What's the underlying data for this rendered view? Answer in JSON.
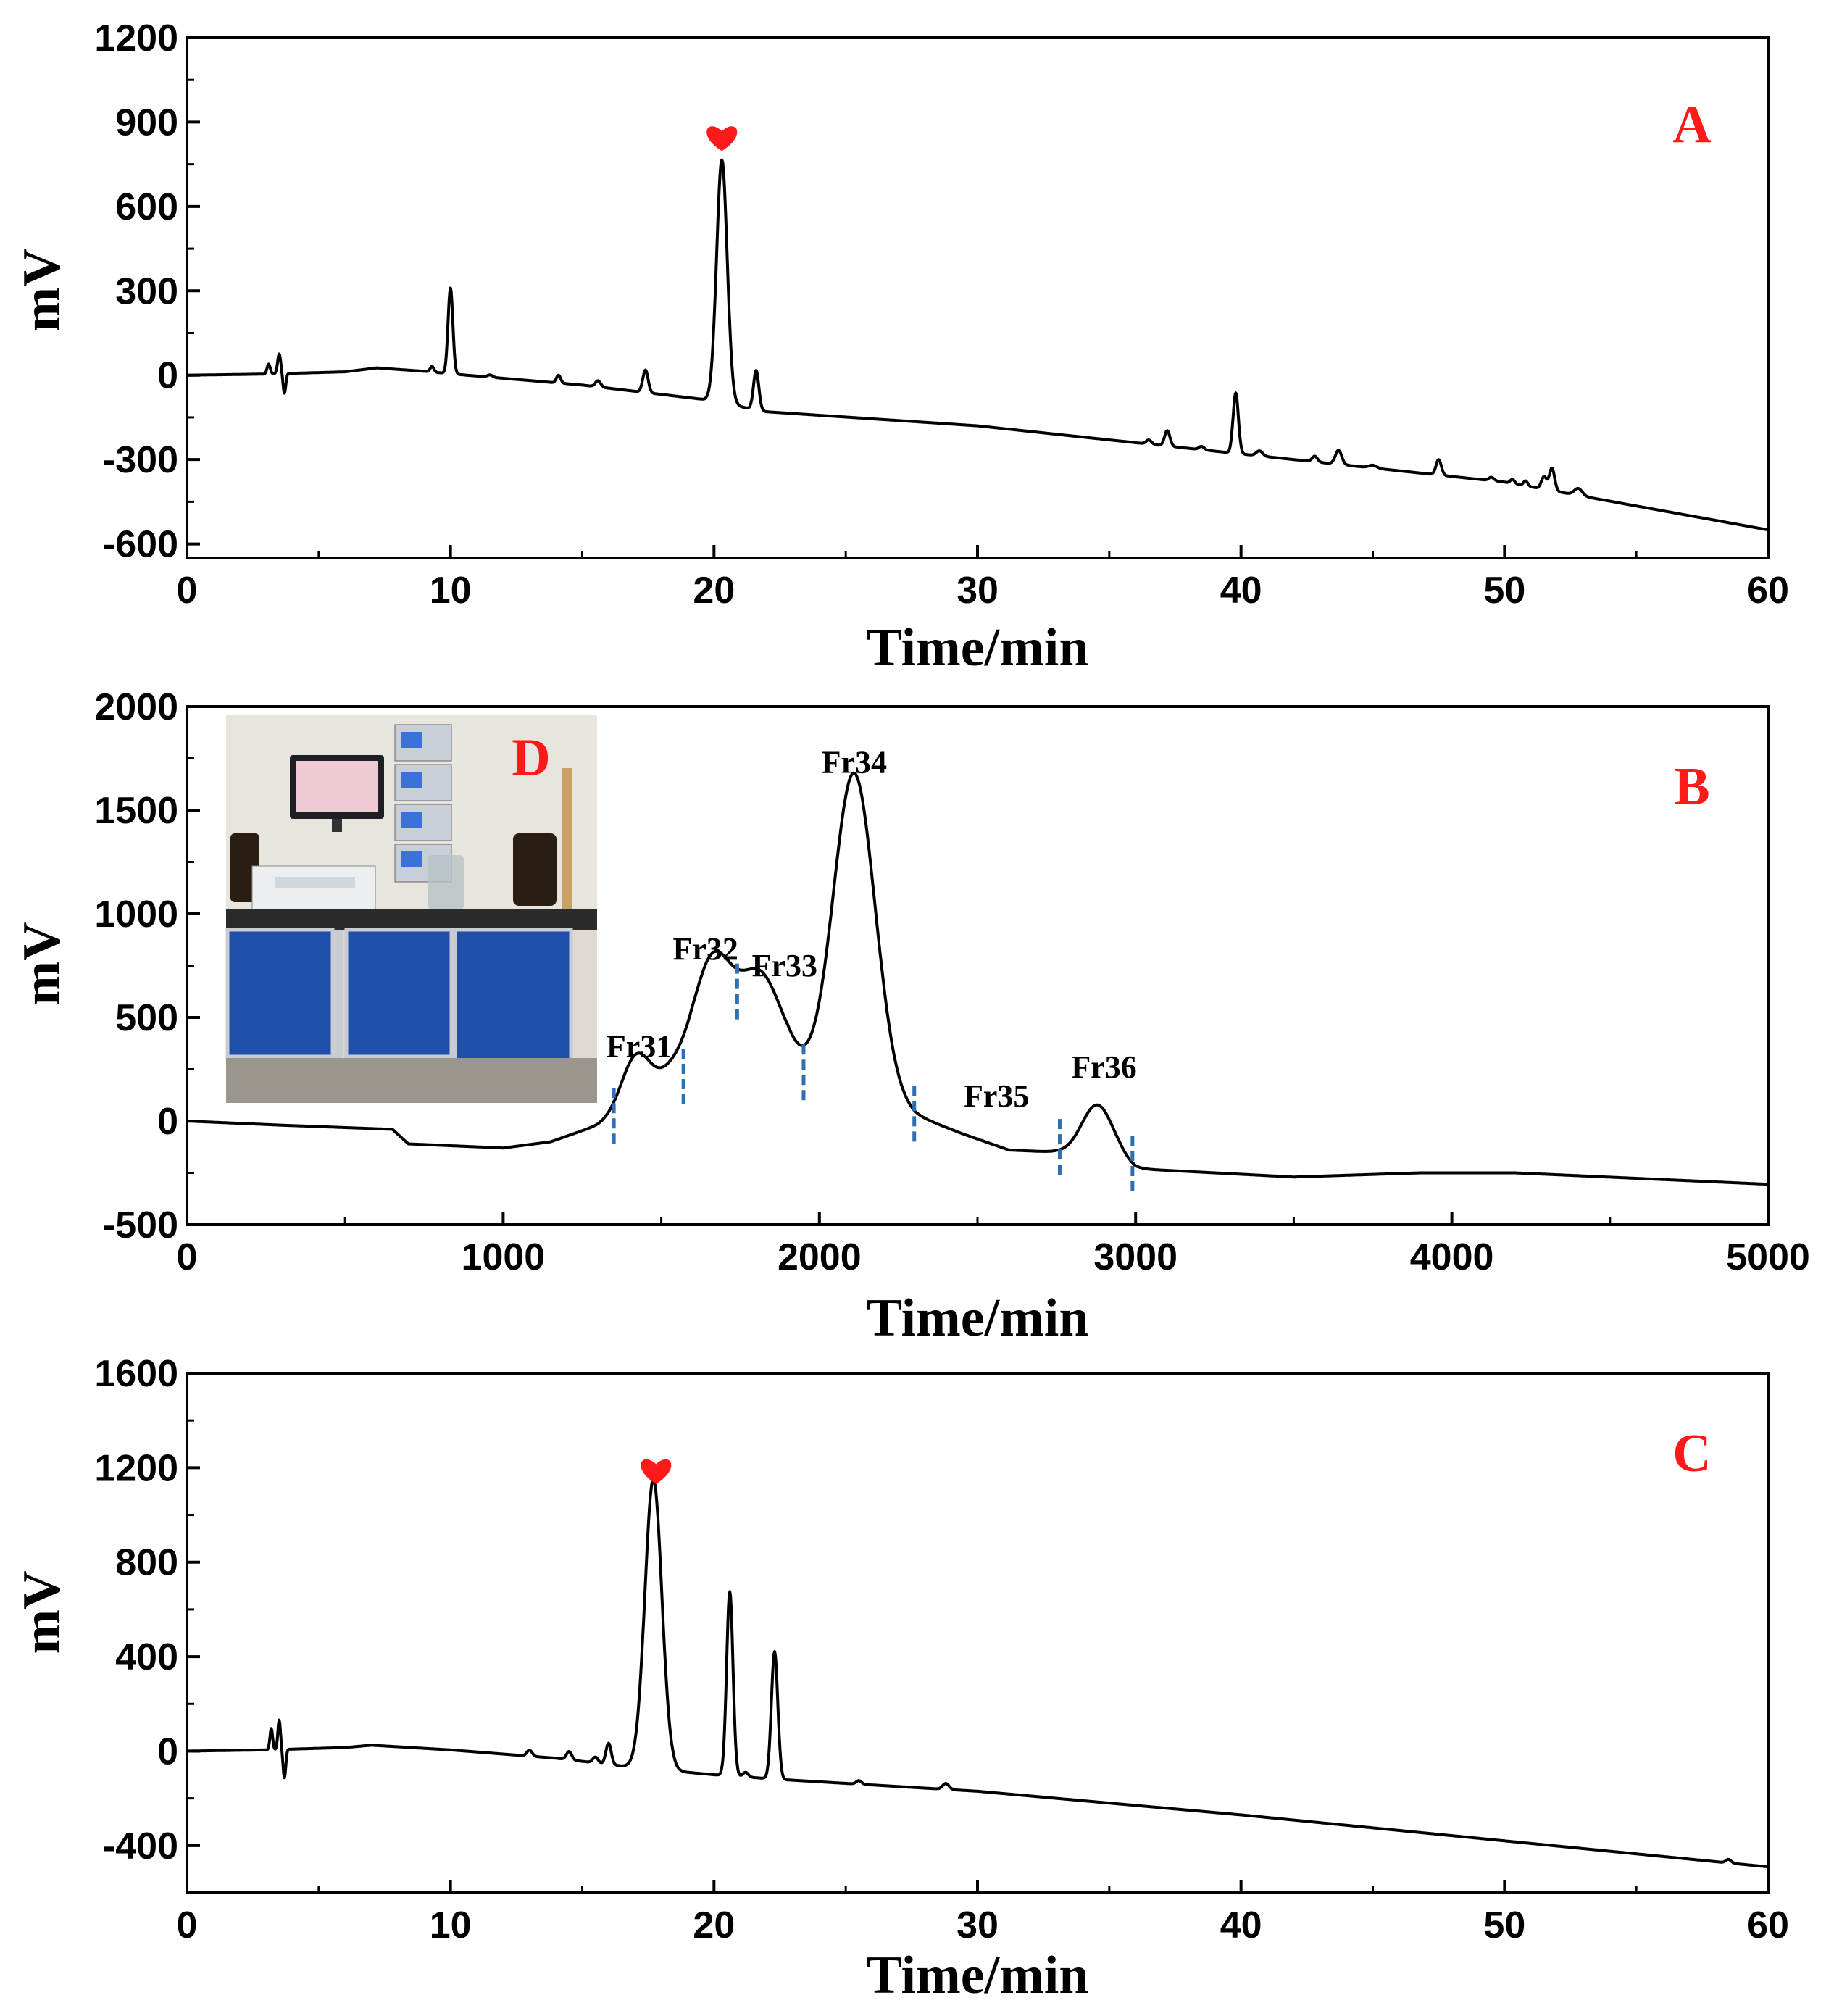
{
  "figure": {
    "panels": [
      "A",
      "B",
      "C"
    ],
    "inset_label": "D",
    "marker_icon": "heart-icon",
    "colors": {
      "line": "#000000",
      "accent": "#ff1a1a",
      "cut": "#2e6fb0"
    }
  },
  "chart_data": [
    {
      "panel": "A",
      "type": "line",
      "xlabel": "Time/min",
      "ylabel": "mV",
      "xlim": [
        0,
        60
      ],
      "ylim": [
        -650,
        1200
      ],
      "xticks": [
        0,
        10,
        20,
        30,
        40,
        50,
        60
      ],
      "yticks": [
        -600,
        -300,
        0,
        300,
        600,
        900,
        1200
      ],
      "panel_label": "A",
      "marked_peak_x": 20.3,
      "baseline": [
        [
          0,
          0
        ],
        [
          3,
          4
        ],
        [
          6,
          12
        ],
        [
          7.2,
          26
        ],
        [
          9,
          14
        ],
        [
          10,
          5
        ],
        [
          15,
          -35
        ],
        [
          19.5,
          -85
        ],
        [
          22,
          -130
        ],
        [
          30,
          -180
        ],
        [
          40,
          -280
        ],
        [
          50,
          -380
        ],
        [
          60,
          -550
        ]
      ],
      "peaks": [
        [
          3.1,
          35,
          0.06
        ],
        [
          3.5,
          70,
          0.06
        ],
        [
          3.7,
          -70,
          0.05
        ],
        [
          9.3,
          20,
          0.07
        ],
        [
          10.0,
          305,
          0.09
        ],
        [
          11.5,
          8,
          0.1
        ],
        [
          14.1,
          28,
          0.08
        ],
        [
          15.6,
          22,
          0.1
        ],
        [
          17.4,
          80,
          0.1
        ],
        [
          20.3,
          865,
          0.2
        ],
        [
          21.6,
          140,
          0.1
        ],
        [
          36.5,
          15,
          0.1
        ],
        [
          37.2,
          55,
          0.1
        ],
        [
          38.5,
          12,
          0.1
        ],
        [
          39.8,
          215,
          0.1
        ],
        [
          40.7,
          18,
          0.12
        ],
        [
          42.8,
          20,
          0.1
        ],
        [
          43.7,
          50,
          0.12
        ],
        [
          45.0,
          10,
          0.15
        ],
        [
          47.5,
          55,
          0.1
        ],
        [
          49.5,
          12,
          0.1
        ],
        [
          50.3,
          15,
          0.08
        ],
        [
          50.8,
          18,
          0.08
        ],
        [
          51.5,
          45,
          0.1
        ],
        [
          51.8,
          80,
          0.1
        ],
        [
          52.8,
          25,
          0.15
        ]
      ],
      "marks": [
        {
          "x": 3.3,
          "kind": "positive"
        },
        {
          "x": 10.0,
          "kind": "positive"
        },
        {
          "x": 20.3,
          "kind": "marked"
        },
        {
          "x": 21.6,
          "kind": "positive"
        },
        {
          "x": 39.8,
          "kind": "positive"
        }
      ]
    },
    {
      "panel": "B",
      "type": "line",
      "xlabel": "Time/min",
      "ylabel": "mV",
      "xlim": [
        0,
        5000
      ],
      "ylim": [
        -500,
        2000
      ],
      "xticks": [
        0,
        1000,
        2000,
        3000,
        4000,
        5000
      ],
      "yticks": [
        -500,
        0,
        500,
        1000,
        1500,
        2000
      ],
      "panel_label": "B",
      "baseline": [
        [
          0,
          0
        ],
        [
          300,
          -20
        ],
        [
          650,
          -40
        ],
        [
          700,
          -110
        ],
        [
          1000,
          -130
        ],
        [
          1150,
          -100
        ],
        [
          1300,
          -20
        ],
        [
          1380,
          40
        ],
        [
          1600,
          200
        ],
        [
          1900,
          250
        ],
        [
          2200,
          120
        ],
        [
          2300,
          30
        ],
        [
          2450,
          -60
        ],
        [
          2600,
          -140
        ],
        [
          2750,
          -150
        ],
        [
          2950,
          -200
        ],
        [
          3000,
          -230
        ],
        [
          3500,
          -270
        ],
        [
          3900,
          -250
        ],
        [
          4200,
          -250
        ],
        [
          5000,
          -305
        ]
      ],
      "peaks": [
        [
          1420,
          250,
          45
        ],
        [
          1530,
          80,
          45
        ],
        [
          1660,
          550,
          60
        ],
        [
          1810,
          470,
          70
        ],
        [
          2110,
          1520,
          65
        ],
        [
          2880,
          260,
          50
        ]
      ],
      "fractions": [
        {
          "name": "Fr31",
          "x": 1430,
          "y": 310,
          "highlight": false
        },
        {
          "name": "Fr32",
          "x": 1640,
          "y": 780,
          "highlight": false
        },
        {
          "name": "Fr33",
          "x": 1890,
          "y": 700,
          "highlight": false
        },
        {
          "name": "Fr34",
          "x": 2110,
          "y": 1680,
          "highlight": true
        },
        {
          "name": "Fr35",
          "x": 2560,
          "y": 70,
          "highlight": false
        },
        {
          "name": "Fr36",
          "x": 2900,
          "y": 210,
          "highlight": false
        }
      ],
      "cut_points": [
        [
          1350,
          20
        ],
        [
          1570,
          210
        ],
        [
          1740,
          620
        ],
        [
          1950,
          230
        ],
        [
          2300,
          30
        ],
        [
          2760,
          -130
        ],
        [
          2990,
          -210
        ]
      ]
    },
    {
      "panel": "C",
      "type": "line",
      "xlabel": "Time/min",
      "ylabel": "mV",
      "xlim": [
        0,
        60
      ],
      "ylim": [
        -600,
        1600
      ],
      "xticks": [
        0,
        10,
        20,
        30,
        40,
        50,
        60
      ],
      "yticks": [
        -400,
        0,
        400,
        800,
        1200,
        1600
      ],
      "panel_label": "C",
      "marked_peak_x": 17.8,
      "baseline": [
        [
          0,
          0
        ],
        [
          3,
          5
        ],
        [
          6,
          15
        ],
        [
          7,
          25
        ],
        [
          10,
          5
        ],
        [
          14,
          -30
        ],
        [
          17,
          -70
        ],
        [
          20,
          -100
        ],
        [
          22.5,
          -120
        ],
        [
          30,
          -170
        ],
        [
          40,
          -270
        ],
        [
          50,
          -380
        ],
        [
          60,
          -490
        ]
      ],
      "peaks": [
        [
          3.2,
          90,
          0.05
        ],
        [
          3.5,
          125,
          0.05
        ],
        [
          3.7,
          -120,
          0.05
        ],
        [
          13,
          25,
          0.1
        ],
        [
          14.5,
          35,
          0.1
        ],
        [
          15.5,
          25,
          0.1
        ],
        [
          16.0,
          90,
          0.1
        ],
        [
          17.7,
          1230,
          0.32
        ],
        [
          20.6,
          780,
          0.12
        ],
        [
          21.2,
          20,
          0.1
        ],
        [
          22.3,
          540,
          0.12
        ],
        [
          25.5,
          15,
          0.1
        ],
        [
          28.8,
          25,
          0.12
        ],
        [
          58.5,
          15,
          0.1
        ]
      ],
      "marks": [
        {
          "x": 3.3,
          "kind": "positive"
        },
        {
          "x": 17.8,
          "kind": "marked"
        },
        {
          "x": 20.6,
          "kind": "positive"
        },
        {
          "x": 22.3,
          "kind": "positive"
        }
      ]
    }
  ]
}
